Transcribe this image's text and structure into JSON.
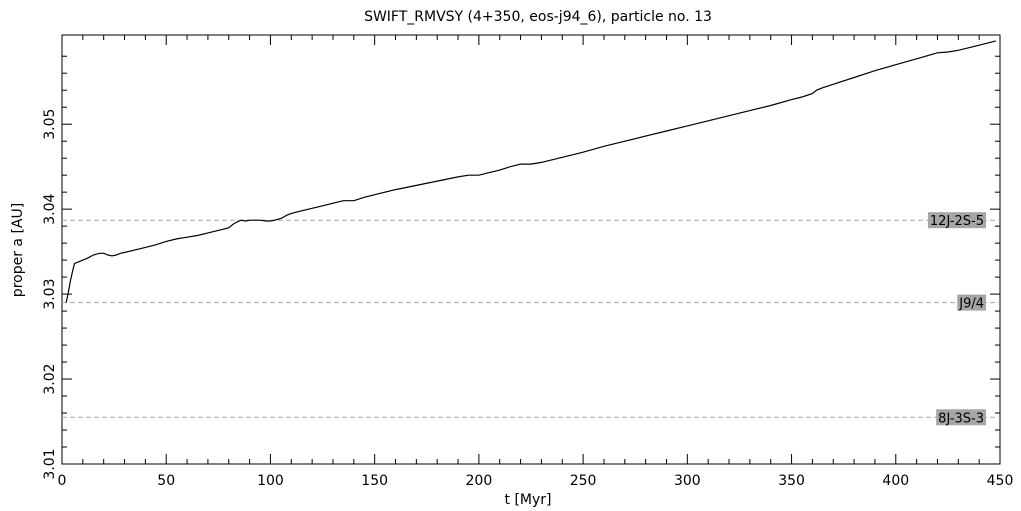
{
  "chart_data": {
    "type": "line",
    "title": "SWIFT_RMVSY (4+350, eos-j94_6), particle no. 13",
    "xlabel": "t [Myr]",
    "ylabel": "proper a [AU]",
    "xlim": [
      0,
      450
    ],
    "ylim": [
      3.01,
      3.0605
    ],
    "x_ticks": [
      0,
      50,
      100,
      150,
      200,
      250,
      300,
      350,
      400,
      450
    ],
    "x_tick_labels": [
      "0",
      "50",
      "100",
      "150",
      "200",
      "250",
      "300",
      "350",
      "400",
      "450"
    ],
    "y_ticks": [
      3.01,
      3.02,
      3.03,
      3.04,
      3.05
    ],
    "y_tick_labels": [
      "3.01",
      "3.02",
      "3.03",
      "3.04",
      "3.05"
    ],
    "grid": false,
    "legend": "none",
    "series": [
      {
        "color": "#000000",
        "x": [
          2,
          3,
          4,
          5,
          6,
          8,
          10,
          12,
          15,
          18,
          20,
          22,
          24,
          26,
          28,
          30,
          35,
          40,
          45,
          50,
          55,
          60,
          65,
          70,
          75,
          80,
          82,
          84,
          86,
          88,
          90,
          92,
          95,
          98,
          100,
          102,
          105,
          108,
          110,
          115,
          120,
          125,
          130,
          135,
          140,
          145,
          150,
          160,
          170,
          180,
          190,
          195,
          200,
          205,
          210,
          215,
          220,
          225,
          230,
          240,
          250,
          260,
          270,
          280,
          290,
          300,
          310,
          320,
          330,
          340,
          350,
          355,
          360,
          362,
          365,
          370,
          380,
          390,
          400,
          410,
          420,
          425,
          430,
          440,
          448
        ],
        "y": [
          3.029,
          3.0302,
          3.0315,
          3.0326,
          3.0336,
          3.0338,
          3.034,
          3.0342,
          3.0346,
          3.0348,
          3.0348,
          3.0346,
          3.0345,
          3.0346,
          3.0348,
          3.0349,
          3.0352,
          3.0355,
          3.0358,
          3.0362,
          3.0365,
          3.0367,
          3.0369,
          3.0372,
          3.0375,
          3.0378,
          3.0382,
          3.0385,
          3.0387,
          3.0386,
          3.0387,
          3.0387,
          3.0387,
          3.0386,
          3.0386,
          3.0387,
          3.0389,
          3.0393,
          3.0395,
          3.0398,
          3.0401,
          3.0404,
          3.0407,
          3.041,
          3.041,
          3.0414,
          3.0417,
          3.0423,
          3.0428,
          3.0433,
          3.0438,
          3.044,
          3.044,
          3.0443,
          3.0446,
          3.045,
          3.0453,
          3.0453,
          3.0455,
          3.0461,
          3.0467,
          3.0474,
          3.048,
          3.0486,
          3.0492,
          3.0498,
          3.0504,
          3.051,
          3.0516,
          3.0522,
          3.0529,
          3.0532,
          3.0536,
          3.054,
          3.0543,
          3.0547,
          3.0555,
          3.0563,
          3.057,
          3.0577,
          3.0584,
          3.0585,
          3.0587,
          3.0593,
          3.0598
        ]
      }
    ],
    "annotations": [
      {
        "label": "12J-2S-5",
        "y": 3.0387
      },
      {
        "label": "J9/4",
        "y": 3.029
      },
      {
        "label": "8J-3S-3",
        "y": 3.0155
      }
    ]
  }
}
